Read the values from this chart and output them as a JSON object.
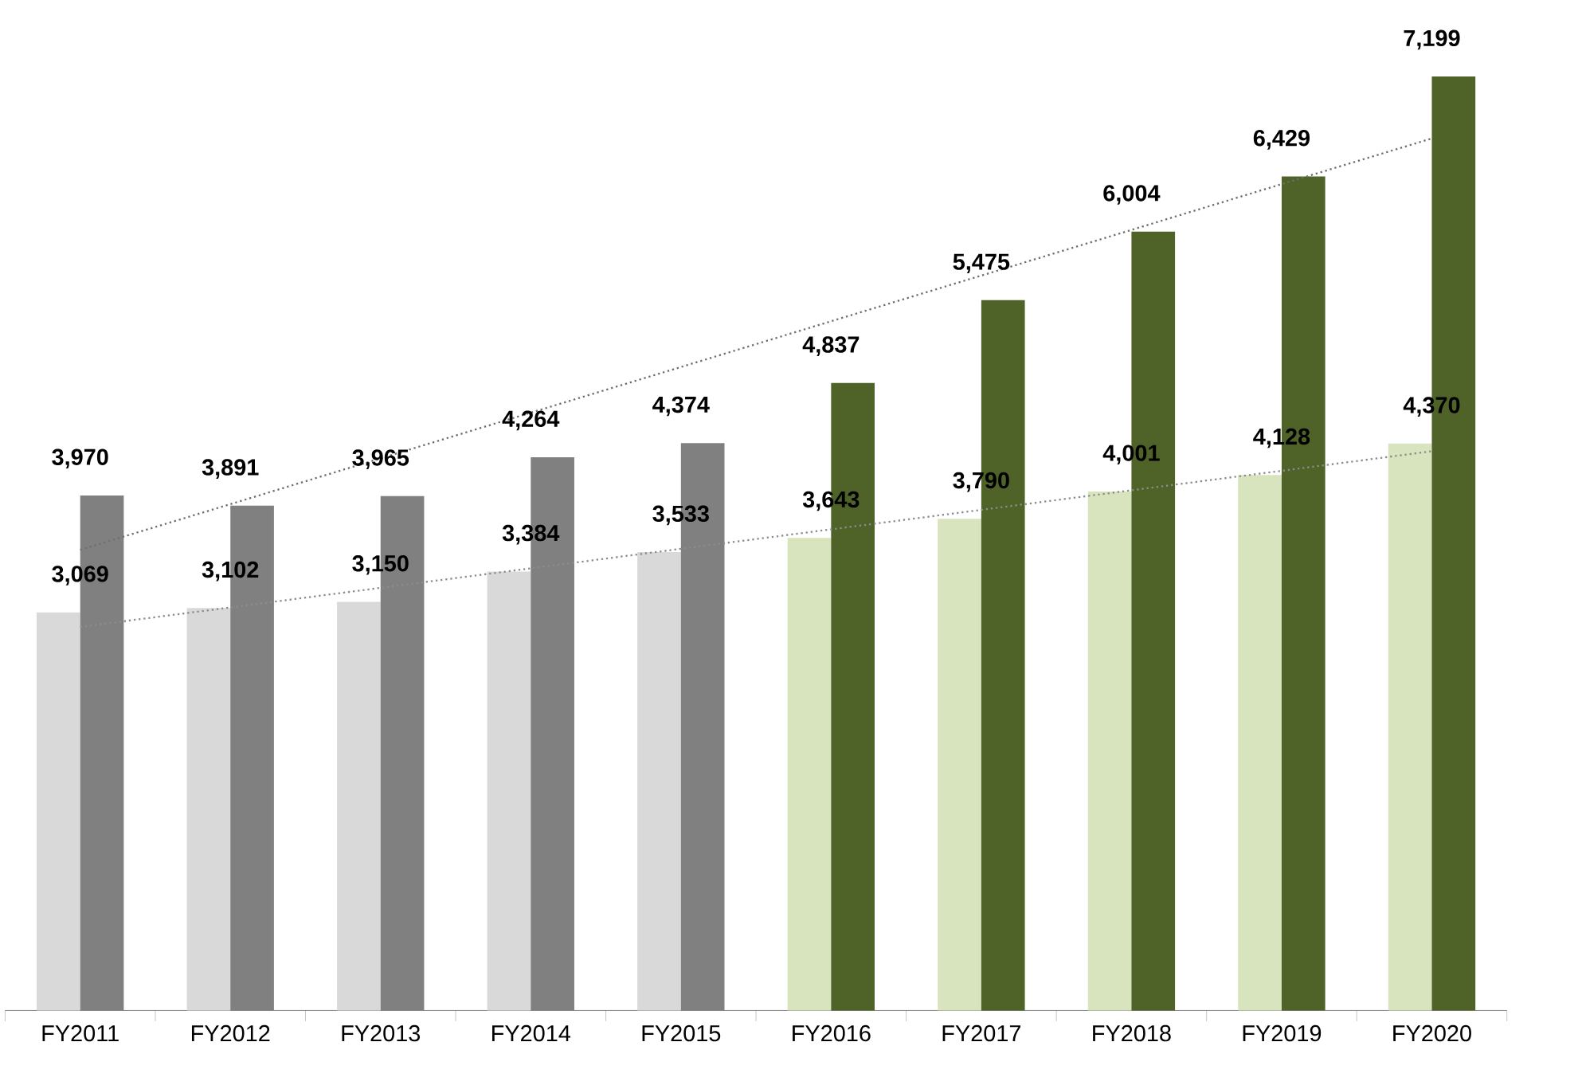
{
  "chart_data": {
    "type": "bar",
    "categories": [
      "FY2011",
      "FY2012",
      "FY2013",
      "FY2014",
      "FY2015",
      "FY2016",
      "FY2017",
      "FY2018",
      "FY2019",
      "FY2020"
    ],
    "series": [
      {
        "colors": [
          "#d9d9d9",
          "#d9d9d9",
          "#d9d9d9",
          "#d9d9d9",
          "#d9d9d9",
          "#d7e4bd",
          "#d7e4bd",
          "#d7e4bd",
          "#d7e4bd",
          "#d7e4bd"
        ],
        "values": [
          3069,
          3102,
          3150,
          3384,
          3533,
          3643,
          3790,
          4001,
          4128,
          4370
        ],
        "value_labels": [
          "3,069",
          "3,102",
          "3,150",
          "3,384",
          "3,533",
          "3,643",
          "3,790",
          "4,001",
          "4,128",
          "4,370"
        ]
      },
      {
        "colors": [
          "#808080",
          "#808080",
          "#808080",
          "#808080",
          "#808080",
          "#4f6228",
          "#4f6228",
          "#4f6228",
          "#4f6228",
          "#4f6228"
        ],
        "values": [
          3970,
          3891,
          3965,
          4264,
          4374,
          4837,
          5475,
          6004,
          6429,
          7199
        ],
        "value_labels": [
          "3,970",
          "3,891",
          "3,965",
          "4,264",
          "4,374",
          "4,837",
          "5,475",
          "6,004",
          "6,429",
          "7,199"
        ]
      },
      {
        "type": "line",
        "line_style": "dotted",
        "color": "#8c8c8c",
        "values": [
          2957,
          3107,
          3258,
          3408,
          3559,
          3709,
          3859,
          4010,
          4160,
          4311
        ]
      },
      {
        "type": "line",
        "line_style": "dotted",
        "color": "#6e6e6e",
        "values": [
          3551,
          3903,
          4256,
          4608,
          4960,
          5313,
          5665,
          6017,
          6370,
          6722
        ]
      }
    ]
  }
}
